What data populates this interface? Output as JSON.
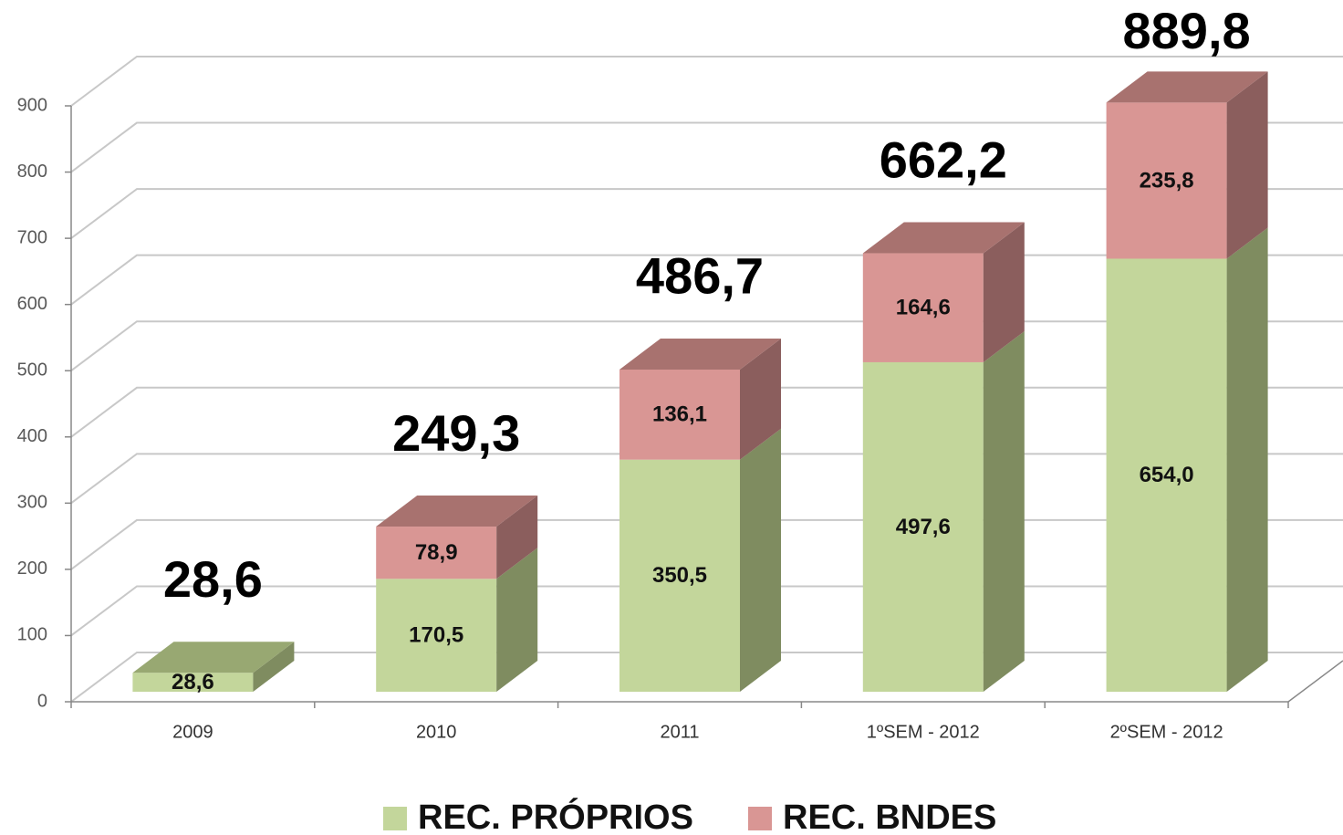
{
  "chart_data": {
    "type": "bar3d_stacked",
    "categories": [
      "2009",
      "2010",
      "2011",
      "1ºSEM - 2012",
      "2ºSEM - 2012"
    ],
    "series": [
      {
        "name": "REC. PRÓPRIOS",
        "color": "#c3d69b",
        "side_color": "#7f8c60",
        "top_color": "#98a872",
        "values": [
          28.6,
          170.5,
          350.5,
          497.6,
          654.0
        ],
        "value_labels": [
          "28,6",
          "170,5",
          "350,5",
          "497,6",
          "654,0"
        ]
      },
      {
        "name": "REC. BNDES",
        "color": "#d99694",
        "side_color": "#8b5e5d",
        "top_color": "#a8726f",
        "values": [
          null,
          78.9,
          136.1,
          164.6,
          235.8
        ],
        "value_labels": [
          null,
          "78,9",
          "136,1",
          "164,6",
          "235,8"
        ]
      }
    ],
    "totals": {
      "values": [
        28.6,
        249.3,
        486.7,
        662.2,
        889.8
      ],
      "labels": [
        "28,6",
        "249,3",
        "486,7",
        "662,2",
        "889,8"
      ]
    },
    "ylim": [
      0,
      900
    ],
    "yticks": [
      0,
      100,
      200,
      300,
      400,
      500,
      600,
      700,
      800,
      900
    ],
    "grid": true,
    "legend": "bottom"
  }
}
